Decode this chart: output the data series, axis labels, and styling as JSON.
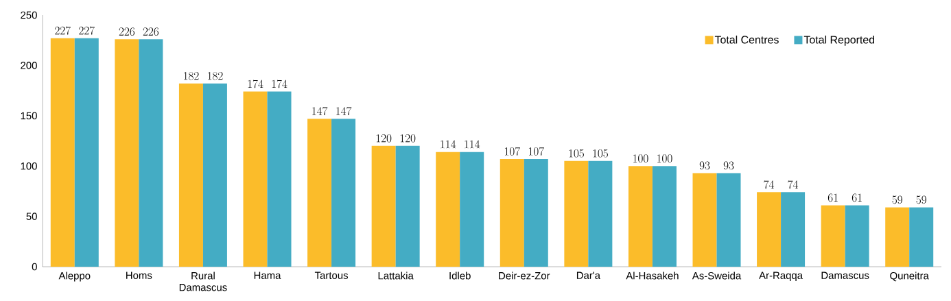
{
  "chart_data": {
    "type": "bar",
    "categories": [
      "Aleppo",
      "Homs",
      "Rural Damascus",
      "Hama",
      "Tartous",
      "Lattakia",
      "Idleb",
      "Deir-ez-Zor",
      "Dar'a",
      "Al-Hasakeh",
      "As-Sweida",
      "Ar-Raqqa",
      "Damascus",
      "Quneitra"
    ],
    "series": [
      {
        "name": "Total Centres",
        "color": "#fbbc2a",
        "values": [
          227,
          226,
          182,
          174,
          147,
          120,
          114,
          107,
          105,
          100,
          93,
          74,
          61,
          59
        ]
      },
      {
        "name": "Total Reported",
        "color": "#44acc4",
        "values": [
          227,
          226,
          182,
          174,
          147,
          120,
          114,
          107,
          105,
          100,
          93,
          74,
          61,
          59
        ]
      }
    ],
    "ylim": [
      0,
      250
    ],
    "yticks": [
      0,
      50,
      100,
      150,
      200,
      250
    ],
    "data_labels": true,
    "legend": "top right",
    "grid": false
  }
}
